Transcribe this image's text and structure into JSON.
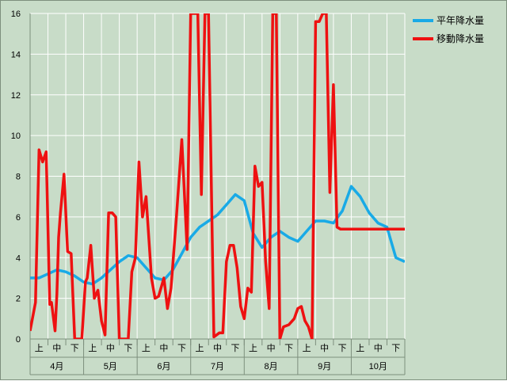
{
  "chart_data": {
    "type": "line",
    "title": "",
    "xlabel": "",
    "ylabel": "",
    "ylim": [
      0,
      16
    ],
    "yticks": [
      0,
      2,
      4,
      6,
      8,
      10,
      12,
      14,
      16
    ],
    "grid": "horizontal and vertical (month/dekad)",
    "legend_position": "top-right",
    "background_color": "#c8dcc8",
    "months": [
      "4月",
      "5月",
      "6月",
      "7月",
      "8月",
      "9月",
      "10月"
    ],
    "dekads": [
      "上",
      "中",
      "下"
    ],
    "series": [
      {
        "name": "平年降水量",
        "color": "#19aae6",
        "x": [
          0,
          0.5,
          1,
          1.5,
          2,
          2.5,
          3,
          3.5,
          4,
          4.5,
          5,
          5.5,
          6,
          6.5,
          7,
          7.5,
          8,
          8.5,
          9,
          9.5,
          10,
          10.5,
          11,
          11.5,
          12,
          12.5,
          13,
          13.5,
          14,
          14.5,
          15,
          15.5,
          16,
          16.5,
          17,
          17.5,
          18,
          18.5,
          19,
          19.5,
          20,
          20.5,
          21
        ],
        "y": [
          3.0,
          3.0,
          3.2,
          3.4,
          3.3,
          3.1,
          2.8,
          2.7,
          3.0,
          3.4,
          3.8,
          4.1,
          4.0,
          3.5,
          3.0,
          2.9,
          3.4,
          4.2,
          5.0,
          5.5,
          5.8,
          6.1,
          6.6,
          7.1,
          6.8,
          5.2,
          4.5,
          5.0,
          5.3,
          5.0,
          4.8,
          5.3,
          5.8,
          5.8,
          5.7,
          6.3,
          7.5,
          7.0,
          6.2,
          5.7,
          5.5,
          4.0,
          3.8
        ]
      },
      {
        "name": "移動降水量",
        "color": "#ee1111",
        "x": [
          0,
          0.3,
          0.5,
          0.7,
          0.9,
          1.1,
          1.2,
          1.4,
          1.5,
          1.6,
          1.7,
          1.9,
          2.1,
          2.3,
          2.5,
          2.7,
          2.9,
          3.1,
          3.2,
          3.4,
          3.6,
          3.8,
          4.0,
          4.2,
          4.4,
          4.6,
          4.8,
          5.0,
          5.3,
          5.5,
          5.7,
          5.9,
          6.1,
          6.3,
          6.5,
          6.8,
          7.0,
          7.2,
          7.5,
          7.7,
          7.9,
          8.2,
          8.5,
          8.8,
          9.0,
          9.2,
          9.4,
          9.6,
          9.8,
          10.0,
          10.3,
          10.6,
          10.8,
          11.0,
          11.2,
          11.4,
          11.6,
          11.8,
          12.0,
          12.2,
          12.4,
          12.6,
          12.8,
          13.0,
          13.2,
          13.4,
          13.6,
          13.8,
          14.0,
          14.2,
          14.5,
          14.8,
          15.0,
          15.2,
          15.4,
          15.6,
          15.8,
          16.0,
          16.2,
          16.4,
          16.6,
          16.8,
          17.0,
          17.2,
          17.4,
          17.6,
          17.8,
          18.0,
          18.2,
          18.4,
          18.6,
          18.8,
          19.0,
          19.2,
          19.4,
          19.6,
          19.8,
          20.0,
          20.2,
          20.4,
          20.6,
          20.8,
          21.0
        ],
        "y": [
          0.4,
          1.8,
          9.3,
          8.7,
          9.2,
          1.7,
          1.8,
          0.4,
          2.2,
          5.0,
          6.2,
          8.1,
          4.3,
          4.2,
          0.0,
          0.0,
          0.0,
          2.8,
          3.0,
          4.6,
          2.0,
          2.4,
          0.9,
          0.2,
          6.2,
          6.2,
          6.0,
          0.0,
          0.0,
          0.0,
          3.3,
          4.0,
          8.7,
          6.0,
          7.0,
          3.0,
          2.0,
          2.1,
          3.0,
          1.5,
          2.5,
          6.0,
          9.8,
          4.4,
          16.0,
          16.0,
          16.0,
          7.1,
          16.0,
          16.0,
          0.1,
          0.3,
          0.3,
          3.8,
          4.6,
          4.6,
          3.5,
          1.6,
          1.0,
          2.5,
          2.3,
          8.5,
          7.5,
          7.7,
          3.8,
          1.5,
          16.0,
          16.0,
          0.0,
          0.6,
          0.7,
          1.0,
          1.5,
          1.6,
          0.9,
          0.6,
          0.0,
          15.6,
          15.6,
          16.0,
          16.0,
          7.2,
          12.5,
          5.5,
          5.4,
          5.4,
          5.4,
          5.4,
          5.4,
          5.4,
          5.4,
          5.4,
          5.4,
          5.4,
          5.4,
          5.4,
          5.4,
          5.4,
          5.4,
          5.4,
          5.4,
          5.4,
          5.4
        ]
      }
    ]
  }
}
